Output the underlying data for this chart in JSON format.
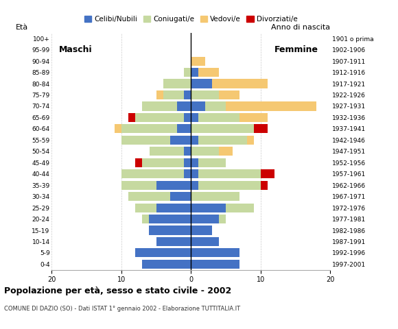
{
  "age_groups": [
    "0-4",
    "5-9",
    "10-14",
    "15-19",
    "20-24",
    "25-29",
    "30-34",
    "35-39",
    "40-44",
    "45-49",
    "50-54",
    "55-59",
    "60-64",
    "65-69",
    "70-74",
    "75-79",
    "80-84",
    "85-89",
    "90-94",
    "95-99",
    "100+"
  ],
  "birth_years": [
    "1997-2001",
    "1992-1996",
    "1987-1991",
    "1982-1986",
    "1977-1981",
    "1972-1976",
    "1967-1971",
    "1962-1966",
    "1957-1961",
    "1952-1956",
    "1947-1951",
    "1942-1946",
    "1937-1941",
    "1932-1936",
    "1927-1931",
    "1922-1926",
    "1917-1921",
    "1912-1916",
    "1907-1911",
    "1902-1906",
    "1901 o prima"
  ],
  "colors": {
    "celibi": "#4472C4",
    "coniugati": "#C6D9A0",
    "vedovi": "#F5C872",
    "divorziati": "#CC0000"
  },
  "males": {
    "celibi": [
      7,
      8,
      5,
      6,
      6,
      5,
      3,
      5,
      1,
      1,
      1,
      3,
      2,
      1,
      2,
      1,
      0,
      0,
      0,
      0,
      0
    ],
    "coniugati": [
      0,
      0,
      0,
      0,
      1,
      3,
      6,
      5,
      9,
      6,
      5,
      7,
      8,
      7,
      5,
      3,
      4,
      1,
      0,
      0,
      0
    ],
    "vedovi": [
      0,
      0,
      0,
      0,
      0,
      0,
      0,
      0,
      0,
      0,
      0,
      0,
      1,
      0,
      0,
      1,
      0,
      0,
      0,
      0,
      0
    ],
    "divorziati": [
      0,
      0,
      0,
      0,
      0,
      0,
      0,
      0,
      0,
      1,
      0,
      0,
      0,
      1,
      0,
      0,
      0,
      0,
      0,
      0,
      0
    ]
  },
  "females": {
    "celibi": [
      7,
      7,
      4,
      3,
      4,
      5,
      0,
      1,
      1,
      1,
      0,
      1,
      0,
      1,
      2,
      0,
      3,
      1,
      0,
      0,
      0
    ],
    "coniugati": [
      0,
      0,
      0,
      0,
      1,
      4,
      7,
      9,
      9,
      4,
      4,
      7,
      9,
      6,
      3,
      4,
      0,
      0,
      0,
      0,
      0
    ],
    "vedovi": [
      0,
      0,
      0,
      0,
      0,
      0,
      0,
      0,
      0,
      0,
      2,
      1,
      0,
      4,
      13,
      3,
      8,
      3,
      2,
      0,
      0
    ],
    "divorziati": [
      0,
      0,
      0,
      0,
      0,
      0,
      0,
      1,
      2,
      0,
      0,
      0,
      2,
      0,
      0,
      0,
      0,
      0,
      0,
      0,
      0
    ]
  },
  "title": "Popolazione per età, sesso e stato civile - 2002",
  "subtitle": "COMUNE DI DAZIO (SO) - Dati ISTAT 1° gennaio 2002 - Elaborazione TUTTITALIA.IT",
  "ylabel_left": "Età",
  "ylabel_right": "Anno di nascita",
  "xlim": 20,
  "legend_labels": [
    "Celibi/Nubili",
    "Coniugati/e",
    "Vedovi/e",
    "Divorziati/e"
  ],
  "maschi_label": "Maschi",
  "femmine_label": "Femmine"
}
